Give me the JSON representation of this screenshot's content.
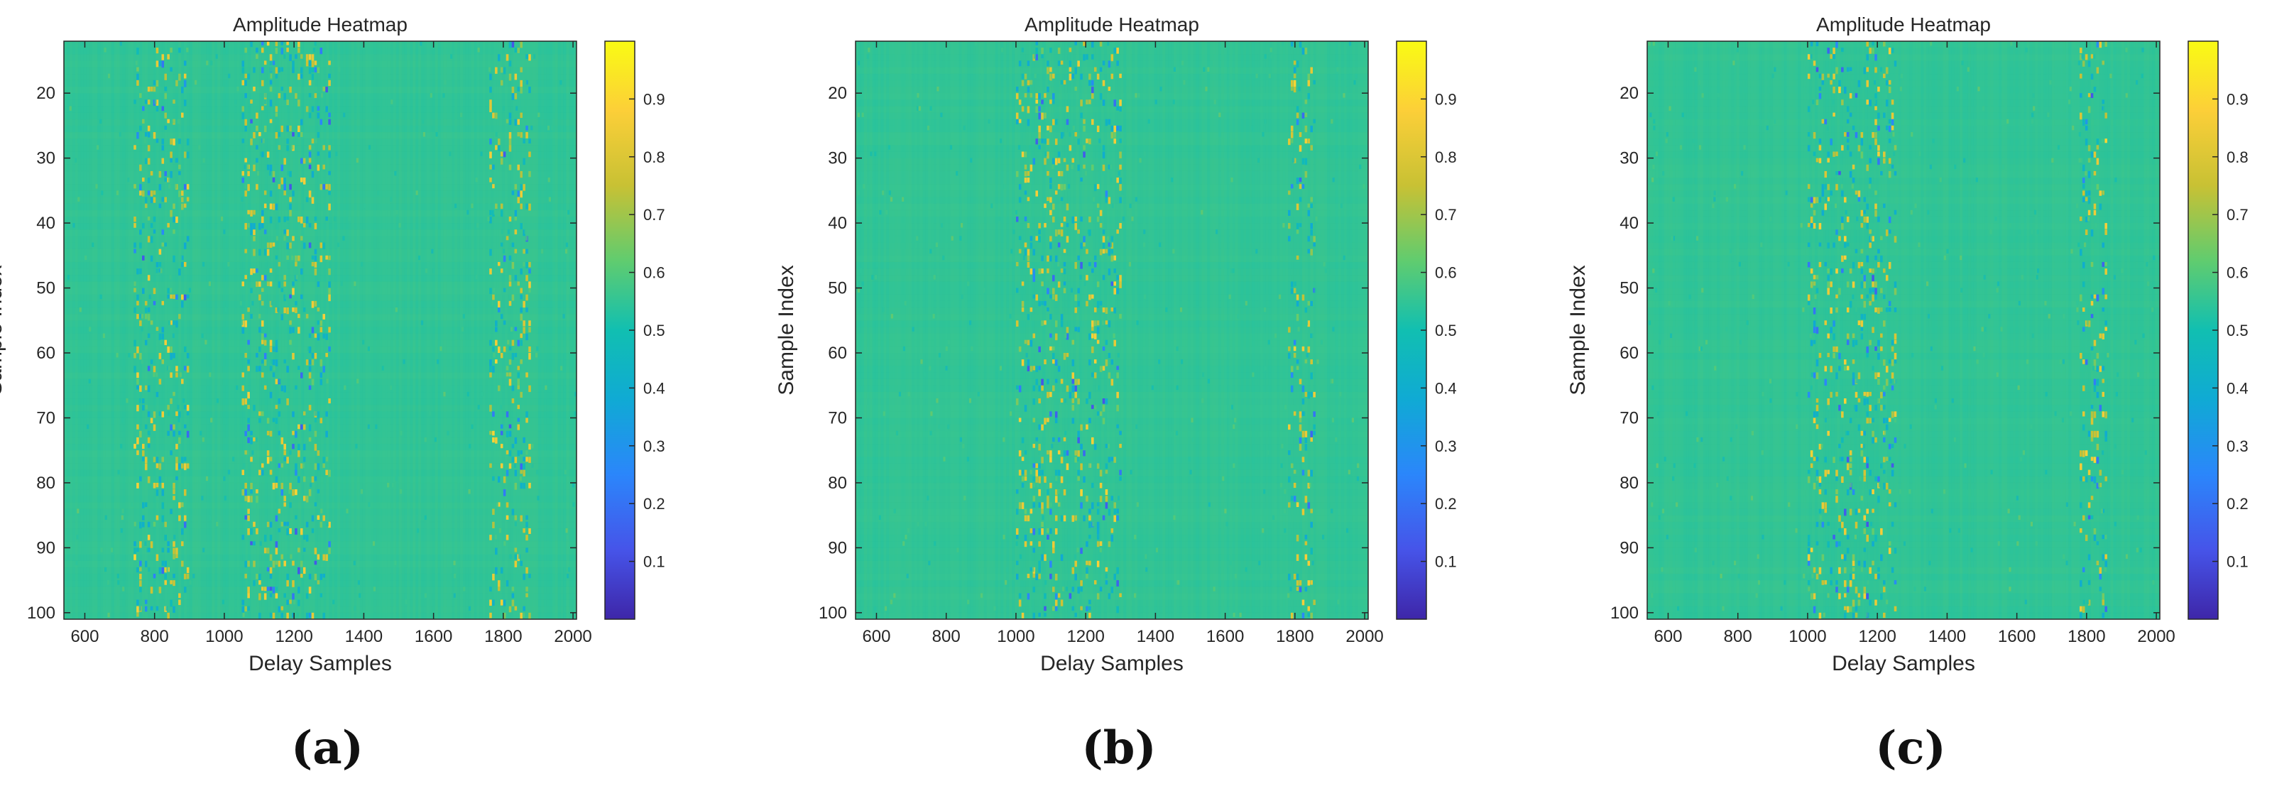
{
  "chart_data": [
    {
      "type": "heatmap",
      "panel": "(a)",
      "title": "Amplitude Heatmap",
      "xlabel": "Delay Samples",
      "ylabel": "Sample Index",
      "xlim": [
        540,
        2010
      ],
      "ylim": [
        12,
        101
      ],
      "y_reversed": true,
      "xticks": [
        600,
        800,
        1000,
        1200,
        1400,
        1600,
        1800,
        2000
      ],
      "yticks": [
        20,
        30,
        40,
        50,
        60,
        70,
        80,
        90,
        100
      ],
      "colormap": "parula",
      "clim": [
        0,
        1
      ],
      "colorbar_ticks": [
        0.1,
        0.2,
        0.3,
        0.4,
        0.5,
        0.6,
        0.7,
        0.8,
        0.9
      ],
      "background_value": 0.55,
      "active_delay_bands": [
        [
          740,
          900
        ],
        [
          1050,
          1300
        ],
        [
          1760,
          1880
        ]
      ]
    },
    {
      "type": "heatmap",
      "panel": "(b)",
      "title": "Amplitude Heatmap",
      "xlabel": "Delay Samples",
      "ylabel": "Sample Index",
      "xlim": [
        540,
        2010
      ],
      "ylim": [
        12,
        101
      ],
      "y_reversed": true,
      "xticks": [
        600,
        800,
        1000,
        1200,
        1400,
        1600,
        1800,
        2000
      ],
      "yticks": [
        20,
        30,
        40,
        50,
        60,
        70,
        80,
        90,
        100
      ],
      "colormap": "parula",
      "clim": [
        0,
        1
      ],
      "colorbar_ticks": [
        0.1,
        0.2,
        0.3,
        0.4,
        0.5,
        0.6,
        0.7,
        0.8,
        0.9
      ],
      "background_value": 0.55,
      "active_delay_bands": [
        [
          1000,
          1300
        ],
        [
          1780,
          1860
        ]
      ]
    },
    {
      "type": "heatmap",
      "panel": "(c)",
      "title": "Amplitude Heatmap",
      "xlabel": "Delay Samples",
      "ylabel": "Sample Index",
      "xlim": [
        540,
        2010
      ],
      "ylim": [
        12,
        101
      ],
      "y_reversed": true,
      "xticks": [
        600,
        800,
        1000,
        1200,
        1400,
        1600,
        1800,
        2000
      ],
      "yticks": [
        20,
        30,
        40,
        50,
        60,
        70,
        80,
        90,
        100
      ],
      "colormap": "parula",
      "clim": [
        0,
        1
      ],
      "colorbar_ticks": [
        0.1,
        0.2,
        0.3,
        0.4,
        0.5,
        0.6,
        0.7,
        0.8,
        0.9
      ],
      "background_value": 0.55,
      "active_delay_bands": [
        [
          1000,
          1250
        ],
        [
          1780,
          1860
        ]
      ]
    }
  ],
  "captions": [
    "(a)",
    "(b)",
    "(c)"
  ]
}
